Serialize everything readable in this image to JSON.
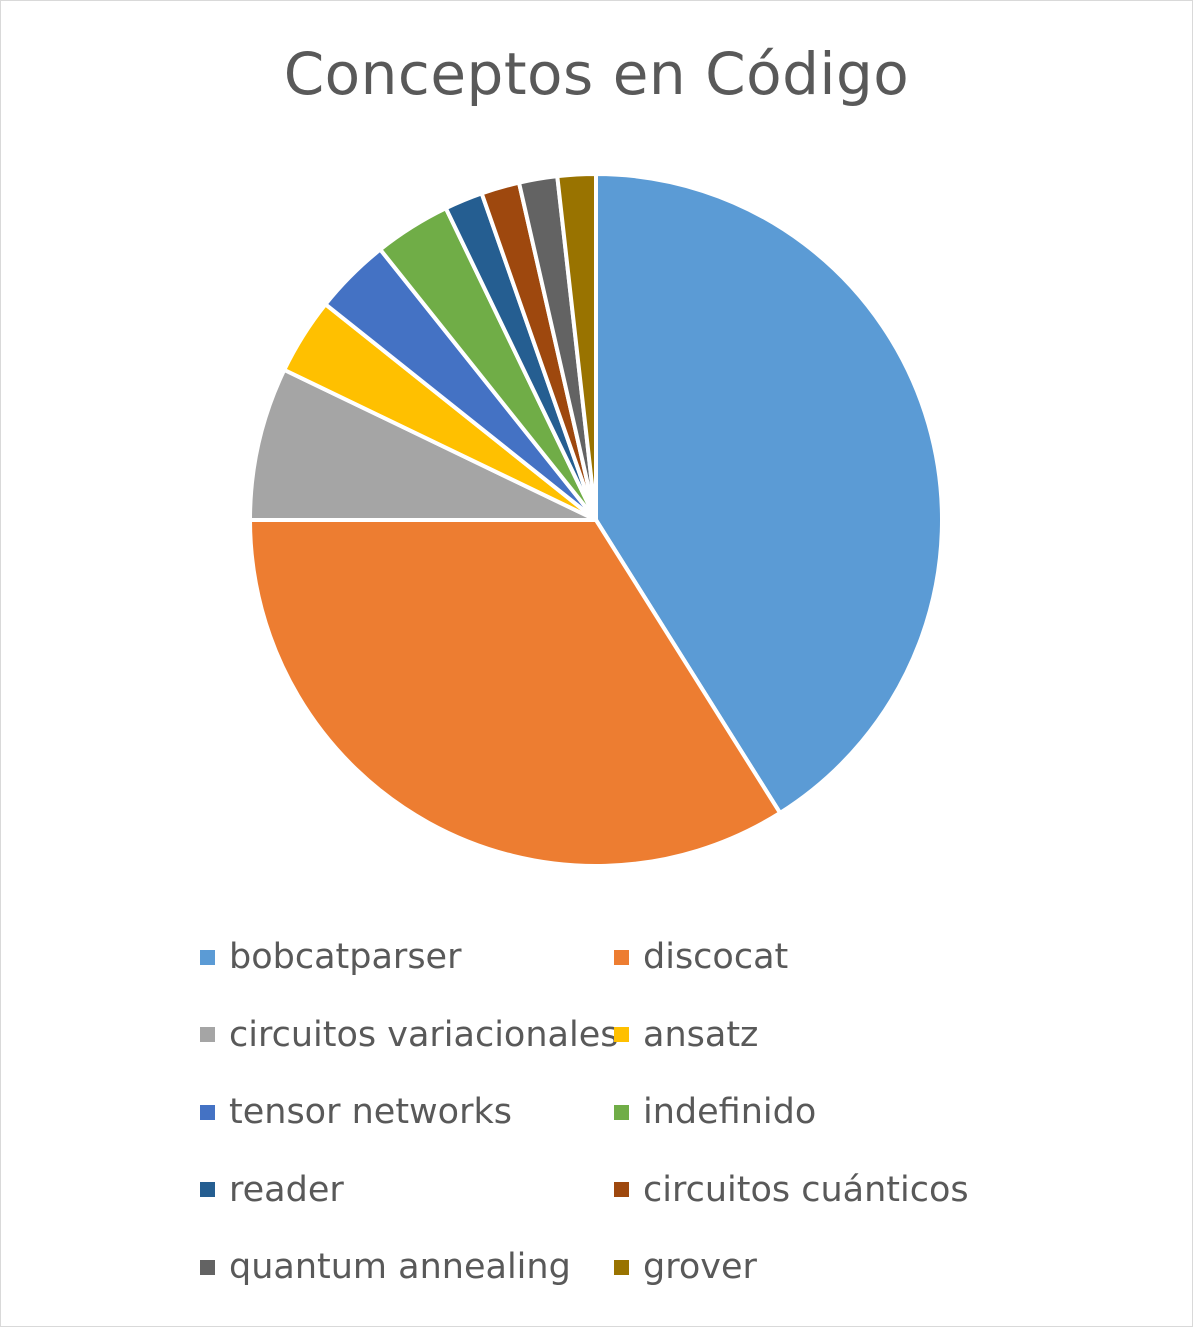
{
  "chart_data": {
    "type": "pie",
    "title": "Conceptos en Código",
    "legend_position": "bottom",
    "start_angle_deg": 0,
    "direction": "clockwise",
    "series": [
      {
        "name": "",
        "categories": [
          "bobcatparser",
          "discocat",
          "circuitos variacionales",
          "ansatz",
          "tensor networks",
          "indefinido",
          "reader",
          "circuitos cuánticos",
          "quantum annealing",
          "grover"
        ],
        "values": [
          23,
          19,
          4,
          2,
          2,
          2,
          1,
          1,
          1,
          1
        ],
        "colors": [
          "#5B9BD5",
          "#ED7D31",
          "#A5A5A5",
          "#FFC000",
          "#4472C4",
          "#70AD47",
          "#255E91",
          "#9E480E",
          "#636363",
          "#997300"
        ]
      }
    ]
  }
}
